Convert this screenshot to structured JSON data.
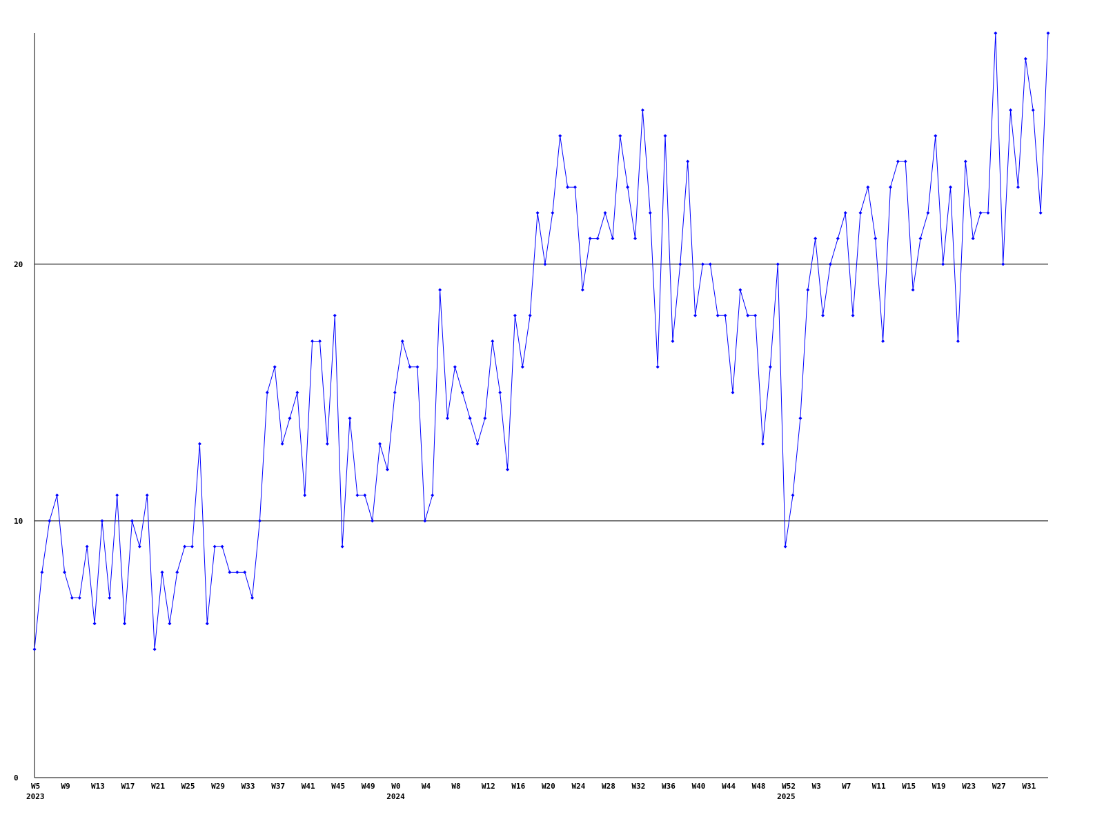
{
  "chart_data": {
    "type": "line",
    "categories": [
      "W5",
      null,
      null,
      null,
      "W9",
      null,
      null,
      null,
      "W13",
      null,
      null,
      null,
      "W17",
      null,
      null,
      null,
      "W21",
      null,
      null,
      null,
      "W25",
      null,
      null,
      null,
      "W29",
      null,
      null,
      null,
      "W33",
      null,
      null,
      null,
      "W37",
      null,
      null,
      null,
      "W41",
      null,
      null,
      null,
      "W45",
      null,
      null,
      null,
      "W49",
      null,
      null,
      null,
      "W0",
      null,
      null,
      null,
      "W4",
      null,
      null,
      null,
      "W8",
      null,
      null,
      null,
      "W12",
      null,
      null,
      null,
      "W16",
      null,
      null,
      null,
      "W20",
      null,
      null,
      null,
      "W24",
      null,
      null,
      null,
      "W28",
      null,
      null,
      null,
      "W32",
      null,
      null,
      null,
      "W36",
      null,
      null,
      null,
      "W40",
      null,
      null,
      null,
      "W44",
      null,
      null,
      null,
      "W48",
      null,
      null,
      null,
      "W52",
      null,
      null,
      null,
      "W3",
      null,
      null,
      null,
      "W7",
      null,
      null,
      null,
      "W11",
      null,
      null,
      null,
      "W15",
      null,
      null,
      null,
      "W19",
      null,
      null,
      null,
      "W23",
      null,
      null,
      null,
      "W27",
      null,
      null,
      null,
      "W31",
      null,
      null,
      null
    ],
    "years": [
      "2023",
      null,
      null,
      null,
      null,
      null,
      null,
      null,
      null,
      null,
      null,
      null,
      null,
      null,
      null,
      null,
      null,
      null,
      null,
      null,
      null,
      null,
      null,
      null,
      null,
      null,
      null,
      null,
      null,
      null,
      null,
      null,
      null,
      null,
      null,
      null,
      null,
      null,
      null,
      null,
      null,
      null,
      null,
      null,
      null,
      null,
      null,
      null,
      "2024",
      null,
      null,
      null,
      null,
      null,
      null,
      null,
      null,
      null,
      null,
      null,
      null,
      null,
      null,
      null,
      null,
      null,
      null,
      null,
      null,
      null,
      null,
      null,
      null,
      null,
      null,
      null,
      null,
      null,
      null,
      null,
      null,
      null,
      null,
      null,
      null,
      null,
      null,
      null,
      null,
      null,
      null,
      null,
      null,
      null,
      null,
      null,
      null,
      null,
      null,
      null,
      "2025",
      null,
      null,
      null,
      null,
      null,
      null,
      null,
      null,
      null,
      null,
      null,
      null,
      null,
      null,
      null,
      null,
      null,
      null,
      null,
      null,
      null,
      null,
      null,
      null,
      null,
      null,
      null,
      null,
      null,
      null,
      null,
      null,
      null,
      null,
      null
    ],
    "values": [
      5,
      8,
      10,
      11,
      8,
      7,
      7,
      9,
      6,
      10,
      7,
      11,
      6,
      10,
      9,
      11,
      5,
      8,
      6,
      8,
      9,
      9,
      13,
      6,
      9,
      9,
      8,
      8,
      8,
      7,
      10,
      15,
      16,
      13,
      14,
      15,
      11,
      17,
      17,
      13,
      18,
      9,
      14,
      11,
      11,
      10,
      13,
      12,
      15,
      17,
      16,
      16,
      10,
      11,
      19,
      14,
      16,
      15,
      14,
      13,
      14,
      17,
      15,
      12,
      18,
      16,
      18,
      22,
      20,
      22,
      25,
      23,
      23,
      19,
      21,
      21,
      22,
      21,
      25,
      23,
      21,
      26,
      22,
      16,
      25,
      17,
      20,
      24,
      18,
      20,
      20,
      18,
      18,
      15,
      19,
      18,
      18,
      13,
      16,
      20,
      9,
      11,
      14,
      19,
      21,
      18,
      20,
      21,
      22,
      18,
      22,
      23,
      21,
      17,
      23,
      24,
      24,
      19,
      21,
      22,
      25,
      20,
      23,
      17,
      24,
      21,
      22,
      22,
      29,
      20,
      26,
      23,
      28,
      26,
      22,
      29
    ],
    "color": "#0000ff",
    "ylim": [
      0,
      29
    ],
    "yticks": [
      0,
      10,
      20
    ],
    "grid": true
  }
}
